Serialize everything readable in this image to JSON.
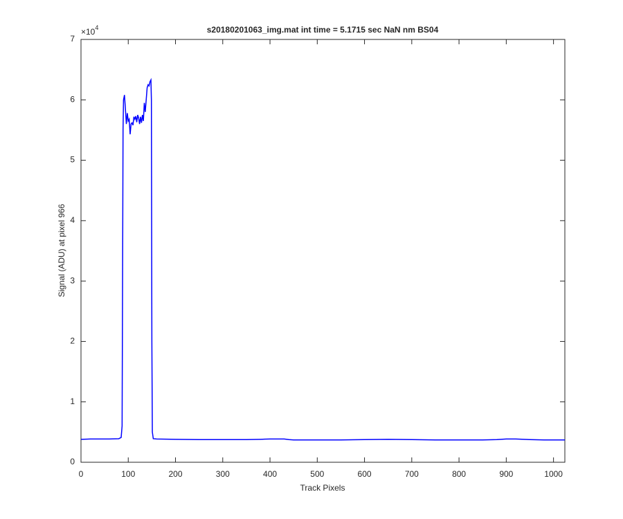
{
  "chart_data": {
    "type": "line",
    "title": "s20180201063_img.mat int time = 5.1715 sec  NaN nm BS04",
    "x_label": "Track Pixels",
    "y_label": "Signal (ADU) at pixel 966",
    "y_multiplier": "×10",
    "y_multiplier_exponent": "4",
    "x": [
      0,
      20,
      40,
      60,
      80,
      85,
      87,
      88,
      89,
      90,
      92,
      94,
      96,
      98,
      100,
      102,
      104,
      106,
      108,
      110,
      112,
      114,
      116,
      118,
      120,
      122,
      124,
      126,
      128,
      130,
      132,
      134,
      136,
      138,
      140,
      142,
      144,
      146,
      148,
      149,
      150,
      151,
      153,
      160,
      200,
      250,
      300,
      350,
      380,
      400,
      430,
      440,
      450,
      500,
      550,
      600,
      650,
      700,
      750,
      800,
      850,
      880,
      900,
      920,
      950,
      980,
      1000,
      1024
    ],
    "series": [
      {
        "color": "#0000ff",
        "values": [
          3800,
          3850,
          3850,
          3850,
          3900,
          4100,
          6000,
          30000,
          55000,
          60000,
          60800,
          58500,
          56000,
          57800,
          56500,
          56800,
          54300,
          56000,
          56200,
          55800,
          57200,
          56800,
          57300,
          56300,
          57500,
          57000,
          56000,
          57200,
          56200,
          57500,
          56500,
          59500,
          58000,
          60000,
          62000,
          62500,
          62300,
          63000,
          63300,
          60000,
          20000,
          5000,
          3900,
          3850,
          3800,
          3750,
          3750,
          3750,
          3800,
          3850,
          3850,
          3750,
          3700,
          3700,
          3700,
          3750,
          3800,
          3750,
          3700,
          3700,
          3700,
          3750,
          3850,
          3850,
          3750,
          3700,
          3700,
          3700
        ]
      }
    ],
    "xlim": [
      0,
      1024
    ],
    "xticks": [
      0,
      100,
      200,
      300,
      400,
      500,
      600,
      700,
      800,
      900,
      1000
    ],
    "ylim": [
      0,
      70000
    ],
    "yticks": [
      0,
      {
        "value": 10000,
        "label": "1"
      },
      {
        "value": 20000,
        "label": "2"
      },
      {
        "value": 30000,
        "label": "3"
      },
      {
        "value": 40000,
        "label": "4"
      },
      {
        "value": 50000,
        "label": "5"
      },
      {
        "value": 60000,
        "label": "6"
      },
      {
        "value": 70000,
        "label": "7"
      }
    ],
    "grid": false
  }
}
